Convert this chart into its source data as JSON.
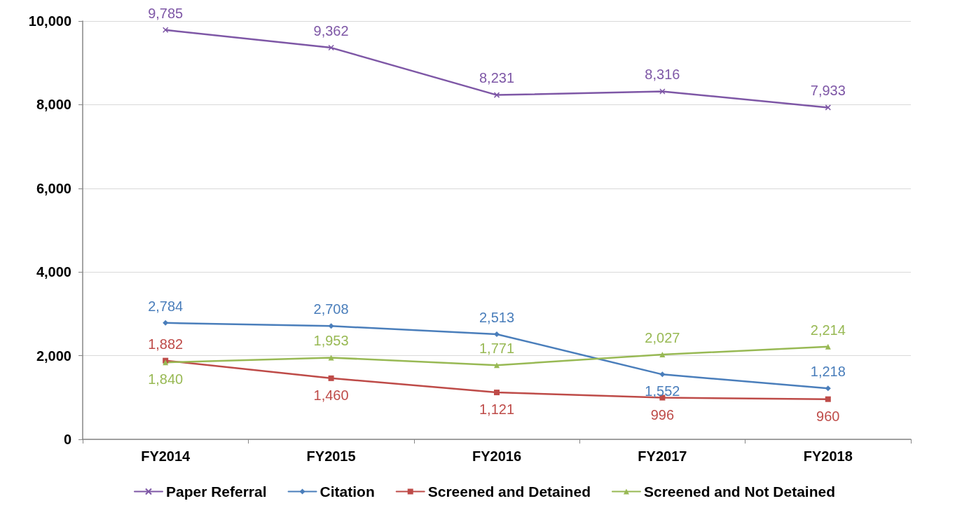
{
  "chart_data": {
    "type": "line",
    "categories": [
      "FY2014",
      "FY2015",
      "FY2016",
      "FY2017",
      "FY2018"
    ],
    "series": [
      {
        "name": "Paper Referral",
        "color": "#7e57a6",
        "marker": "cross",
        "values": [
          9785,
          9362,
          8231,
          8316,
          7933
        ],
        "value_labels": [
          "9,785",
          "9,362",
          "8,231",
          "8,316",
          "7,933"
        ]
      },
      {
        "name": "Citation",
        "color": "#4a7ebb",
        "marker": "diamond",
        "values": [
          2784,
          2708,
          2513,
          1552,
          1218
        ],
        "value_labels": [
          "2,784",
          "2,708",
          "2,513",
          "1,552",
          "1,218"
        ]
      },
      {
        "name": "Screened and Detained",
        "color": "#be4b48",
        "marker": "square",
        "values": [
          1882,
          1460,
          1121,
          996,
          960
        ],
        "value_labels": [
          "1,882",
          "1,460",
          "1,121",
          "996",
          "960"
        ]
      },
      {
        "name": "Screened and Not Detained",
        "color": "#98b954",
        "marker": "triangle",
        "values": [
          1840,
          1953,
          1771,
          2027,
          2214
        ],
        "value_labels": [
          "1,840",
          "1,953",
          "1,771",
          "2,027",
          "2,214"
        ]
      }
    ],
    "ylim": [
      0,
      10000
    ],
    "yticks": [
      0,
      {
        "value": 2000,
        "label": "2,000"
      },
      {
        "value": 4000,
        "label": "4,000"
      },
      {
        "value": 6000,
        "label": "6,000"
      },
      {
        "value": 8000,
        "label": "8,000"
      },
      {
        "value": 10000,
        "label": "10,000"
      }
    ],
    "grid": "y",
    "legend": "bottom",
    "line_style": "solid"
  }
}
